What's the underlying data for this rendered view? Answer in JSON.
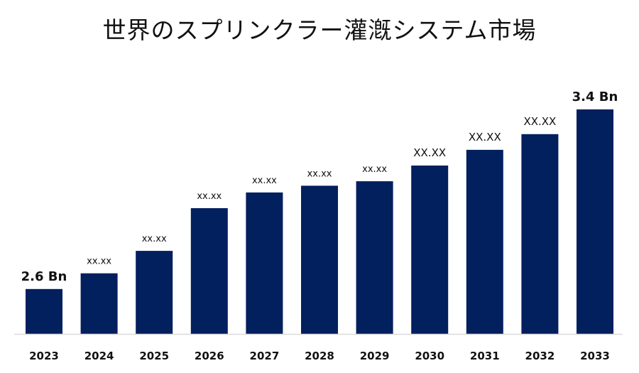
{
  "chart_data": {
    "type": "bar",
    "title": "世界のスプリンクラー灌漑システム市場",
    "categories": [
      "2023",
      "2024",
      "2025",
      "2026",
      "2027",
      "2028",
      "2029",
      "2030",
      "2031",
      "2032",
      "2033"
    ],
    "values": [
      2.6,
      2.67,
      2.77,
      2.96,
      3.03,
      3.06,
      3.08,
      3.15,
      3.22,
      3.29,
      3.4
    ],
    "data_labels": [
      "2.6 Bn",
      "xx.xx",
      "xx.xx",
      "xx.xx",
      "xx.xx",
      "xx.xx",
      "xx.xx",
      "XX.XX",
      "XX.XX",
      "XX.XX",
      "3.4 Bn"
    ],
    "ylim": [
      2.4,
      3.45
    ],
    "bar_color": "#021f5e",
    "axis_color": "#d9d9d9",
    "grid": false,
    "legend": "none"
  }
}
